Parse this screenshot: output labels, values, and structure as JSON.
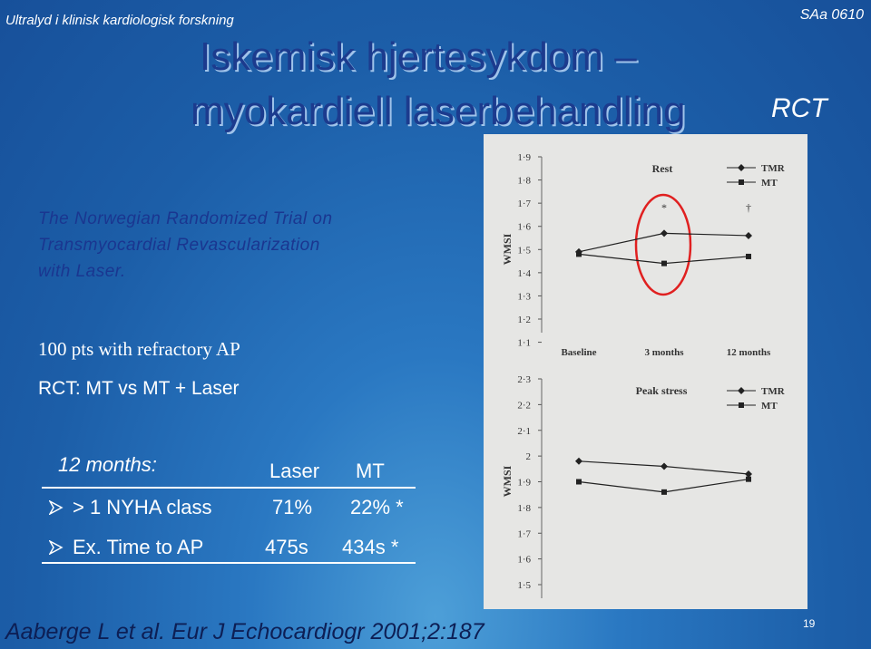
{
  "header": {
    "left": "Ultralyd i klinisk kardiologisk forskning",
    "right": "SAa  0610"
  },
  "title": {
    "line1": "Iskemisk hjertesykdom –",
    "line2": "myokardiell laserbehandling",
    "tag": "RCT"
  },
  "trial": {
    "lines": [
      "The Norwegian Randomized Trial on",
      "Transmyocardial Revascularization",
      "with Laser."
    ]
  },
  "bullets": [
    "100 pts with refractory AP",
    "RCT: MT vs MT + Laser"
  ],
  "table": {
    "header": [
      "12 months:",
      "Laser",
      "MT"
    ],
    "rows": [
      [
        "> 1 NYHA class",
        "71%",
        "22% *"
      ],
      [
        "Ex. Time to AP",
        "475s",
        "434s *"
      ]
    ]
  },
  "citation": "Aaberge L et al. Eur J Echocardiogr 2001;2:187",
  "page_number": "19",
  "figure": {
    "charts": [
      {
        "type": "line",
        "title": "Rest",
        "y_label": "WMSI",
        "categories": [
          "Baseline",
          "3 months",
          "12 months"
        ],
        "series": [
          {
            "name": "TMR",
            "color": "#222222",
            "values": [
              1.49,
              1.57,
              1.56
            ]
          },
          {
            "name": "MT",
            "color": "#222222",
            "values": [
              1.48,
              1.44,
              1.47
            ]
          }
        ],
        "annotations": [
          "*",
          "†"
        ],
        "ylim": [
          1.2,
          1.9
        ],
        "yticks": [
          {
            "value": 1.2,
            "label": "1·2"
          },
          {
            "value": 1.3,
            "label": "1·3"
          },
          {
            "value": 1.4,
            "label": "1·4"
          },
          {
            "value": 1.5,
            "label": "1·5"
          },
          {
            "value": 1.6,
            "label": "1·6"
          },
          {
            "value": 1.7,
            "label": "1·7"
          },
          {
            "value": 1.8,
            "label": "1·8"
          },
          {
            "value": 1.9,
            "label": "1·9"
          }
        ],
        "extra_tick": {
          "value": 1.1,
          "label": "1·1"
        }
      },
      {
        "type": "line",
        "title": "Peak stress",
        "y_label": "WMSI",
        "categories": [
          "Baseline",
          "3 months",
          "12 months"
        ],
        "series": [
          {
            "name": "TMR",
            "color": "#222222",
            "values": [
              1.98,
              1.96,
              1.93
            ]
          },
          {
            "name": "MT",
            "color": "#222222",
            "values": [
              1.9,
              1.86,
              1.91
            ]
          }
        ],
        "ylim": [
          1.5,
          2.3
        ],
        "yticks": [
          {
            "value": 1.5,
            "label": "1·5"
          },
          {
            "value": 1.6,
            "label": "1·6"
          },
          {
            "value": 1.7,
            "label": "1·7"
          },
          {
            "value": 1.8,
            "label": "1·8"
          },
          {
            "value": 1.9,
            "label": "1·9"
          },
          2,
          {
            "value": 2.1,
            "label": "2·1"
          },
          {
            "value": 2.2,
            "label": "2·2"
          },
          {
            "value": 2.3,
            "label": "2·3"
          }
        ]
      }
    ]
  }
}
